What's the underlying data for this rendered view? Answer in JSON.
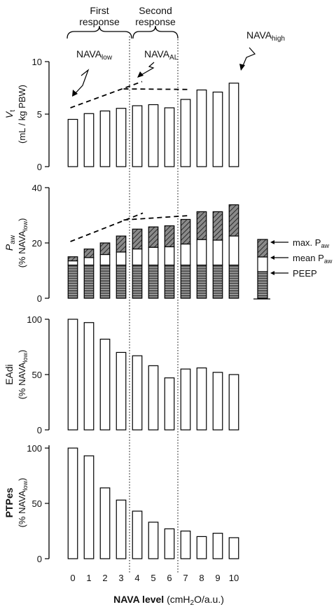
{
  "chart_data": [
    {
      "type": "bar",
      "panel": "tidal-volume",
      "ylabel_main": "V",
      "ylabel_sub": "t",
      "ylabel_units": "(mL / kg PBW)",
      "ylim": [
        0,
        10
      ],
      "yticks": [
        0,
        5,
        10
      ],
      "categories": [
        0,
        1,
        2,
        3,
        4,
        5,
        6,
        7,
        8,
        9,
        10
      ],
      "values": [
        4.5,
        5.05,
        5.3,
        5.55,
        5.8,
        5.9,
        5.6,
        6.4,
        7.3,
        7.1,
        7.95
      ],
      "trend_lines": [
        {
          "from": [
            -0.15,
            5.6
          ],
          "to": [
            4.3,
            8.1
          ]
        },
        {
          "from": [
            3.15,
            7.4
          ],
          "to": [
            7.25,
            7.35
          ]
        }
      ]
    },
    {
      "type": "bar",
      "stacked": true,
      "panel": "airway-pressure",
      "ylabel_main": "P",
      "ylabel_sub": "aw",
      "ylabel_units_pre": "(% NAVA",
      "ylabel_units_sub": "low",
      "ylabel_units_post": ")",
      "ylim": [
        0,
        40
      ],
      "yticks": [
        0,
        20,
        40
      ],
      "categories": [
        0,
        1,
        2,
        3,
        4,
        5,
        6,
        7,
        8,
        9,
        10
      ],
      "peep": [
        12,
        12,
        12,
        12,
        12,
        12,
        12,
        12,
        12,
        12,
        12
      ],
      "mean_paw": [
        13.5,
        14.7,
        15.8,
        16.7,
        17.8,
        18.4,
        18.6,
        19.6,
        21.2,
        21.0,
        22.5
      ],
      "max_paw": [
        15.0,
        17.8,
        20.0,
        22.5,
        25.0,
        25.8,
        26.2,
        28.5,
        31.3,
        31.3,
        33.8
      ],
      "trend_lines": [
        {
          "from": [
            -0.15,
            20.5
          ],
          "to": [
            4.35,
            30.8
          ]
        },
        {
          "from": [
            3.15,
            28.3
          ],
          "to": [
            7.25,
            29.9
          ]
        }
      ],
      "legend": {
        "max": {
          "pre": "max. P",
          "sub": "aw"
        },
        "mean": {
          "pre": "mean P",
          "sub": "aw"
        },
        "peep": "PEEP"
      }
    },
    {
      "type": "bar",
      "panel": "eadi",
      "ylabel_main": "EAdi",
      "ylabel_units_pre": "(% NAVA",
      "ylabel_units_sub": "low",
      "ylabel_units_post": ")",
      "ylim": [
        0,
        100
      ],
      "yticks": [
        0,
        50,
        100
      ],
      "categories": [
        0,
        1,
        2,
        3,
        4,
        5,
        6,
        7,
        8,
        9,
        10
      ],
      "values": [
        100,
        97,
        82,
        70,
        67,
        58,
        47,
        55,
        56,
        52,
        50
      ]
    },
    {
      "type": "bar",
      "panel": "ptpes",
      "ylabel_main": "PTPes",
      "ylabel_units_pre": "(% NAVA",
      "ylabel_units_sub": "low",
      "ylabel_units_post": ")",
      "ylim": [
        0,
        100
      ],
      "yticks": [
        0,
        50,
        100
      ],
      "categories": [
        0,
        1,
        2,
        3,
        4,
        5,
        6,
        7,
        8,
        9,
        10
      ],
      "values": [
        100,
        93,
        64,
        53,
        43,
        33,
        27,
        25,
        20,
        23,
        19
      ]
    }
  ],
  "xlabel": {
    "bold": "NAVA level",
    "pre": " (cmH",
    "sub": "2",
    "post": "O/a.u.)"
  },
  "annotations": {
    "first_response": [
      "First",
      "response"
    ],
    "second_response": [
      "Second",
      "response"
    ],
    "nava_low": {
      "pre": "NAVA",
      "sub": "low"
    },
    "nava_al": {
      "pre": "NAVA",
      "sub": "AL"
    },
    "nava_high": {
      "pre": "NAVA",
      "sub": "high"
    }
  },
  "colors": {
    "bar_fill": "#ffffff",
    "max_fill": "#8a8a8a",
    "peep_fill": "#555555",
    "stroke": "#000000"
  }
}
